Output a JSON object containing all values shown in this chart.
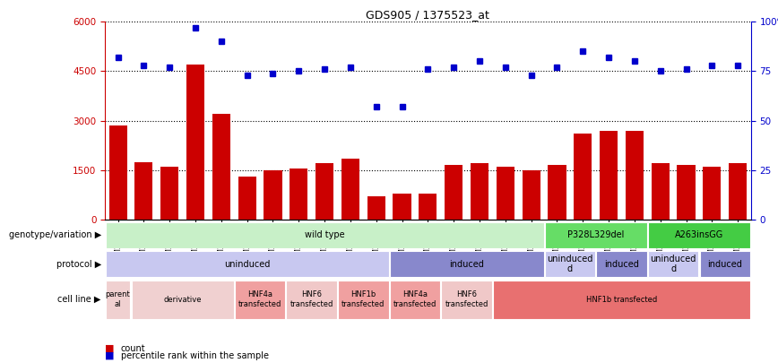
{
  "title": "GDS905 / 1375523_at",
  "samples": [
    "GSM27203",
    "GSM27204",
    "GSM27205",
    "GSM27206",
    "GSM27207",
    "GSM27150",
    "GSM27152",
    "GSM27156",
    "GSM27159",
    "GSM27063",
    "GSM27148",
    "GSM27151",
    "GSM27153",
    "GSM27157",
    "GSM27160",
    "GSM27147",
    "GSM27149",
    "GSM27161",
    "GSM27165",
    "GSM27163",
    "GSM27167",
    "GSM27169",
    "GSM27171",
    "GSM27170",
    "GSM27172"
  ],
  "counts": [
    2850,
    1750,
    1600,
    4700,
    3200,
    1300,
    1500,
    1550,
    1700,
    1850,
    700,
    800,
    800,
    1650,
    1700,
    1600,
    1500,
    1650,
    2600,
    2700,
    2700,
    1700,
    1650,
    1600,
    1700
  ],
  "percentiles": [
    82,
    78,
    77,
    97,
    90,
    73,
    74,
    75,
    76,
    77,
    57,
    57,
    76,
    77,
    80,
    77,
    73,
    77,
    85,
    82,
    80,
    75,
    76,
    78,
    78
  ],
  "ylim_left": [
    0,
    6000
  ],
  "ylim_right": [
    0,
    100
  ],
  "yticks_left": [
    0,
    1500,
    3000,
    4500,
    6000
  ],
  "yticks_right": [
    0,
    25,
    50,
    75,
    100
  ],
  "bar_color": "#cc0000",
  "dot_color": "#0000cc",
  "genotype_row": {
    "label": "genotype/variation",
    "segments": [
      {
        "text": "wild type",
        "start": 0,
        "end": 17,
        "color": "#c8f0c8"
      },
      {
        "text": "P328L329del",
        "start": 17,
        "end": 21,
        "color": "#66dd66"
      },
      {
        "text": "A263insGG",
        "start": 21,
        "end": 25,
        "color": "#44cc44"
      }
    ]
  },
  "protocol_row": {
    "label": "protocol",
    "segments": [
      {
        "text": "uninduced",
        "start": 0,
        "end": 11,
        "color": "#c8c8f0"
      },
      {
        "text": "induced",
        "start": 11,
        "end": 17,
        "color": "#8888cc"
      },
      {
        "text": "uninduced\nd",
        "start": 17,
        "end": 19,
        "color": "#c8c8f0"
      },
      {
        "text": "induced",
        "start": 19,
        "end": 21,
        "color": "#8888cc"
      },
      {
        "text": "uninduced\nd",
        "start": 21,
        "end": 23,
        "color": "#c8c8f0"
      },
      {
        "text": "induced",
        "start": 23,
        "end": 25,
        "color": "#8888cc"
      }
    ]
  },
  "cellline_row": {
    "label": "cell line",
    "segments": [
      {
        "text": "parent\nal",
        "start": 0,
        "end": 1,
        "color": "#f0d0d0"
      },
      {
        "text": "derivative",
        "start": 1,
        "end": 5,
        "color": "#f0d0d0"
      },
      {
        "text": "HNF4a\ntransfected",
        "start": 5,
        "end": 7,
        "color": "#f0a0a0"
      },
      {
        "text": "HNF6\ntransfected",
        "start": 7,
        "end": 9,
        "color": "#f0c8c8"
      },
      {
        "text": "HNF1b\ntransfected",
        "start": 9,
        "end": 11,
        "color": "#f0a0a0"
      },
      {
        "text": "HNF4a\ntransfected",
        "start": 11,
        "end": 13,
        "color": "#f0a0a0"
      },
      {
        "text": "HNF6\ntransfected",
        "start": 13,
        "end": 15,
        "color": "#f0c8c8"
      },
      {
        "text": "HNF1b transfected",
        "start": 15,
        "end": 25,
        "color": "#e87070"
      }
    ]
  },
  "legend": [
    {
      "color": "#cc0000",
      "label": "count"
    },
    {
      "color": "#0000cc",
      "label": "percentile rank within the sample"
    }
  ]
}
